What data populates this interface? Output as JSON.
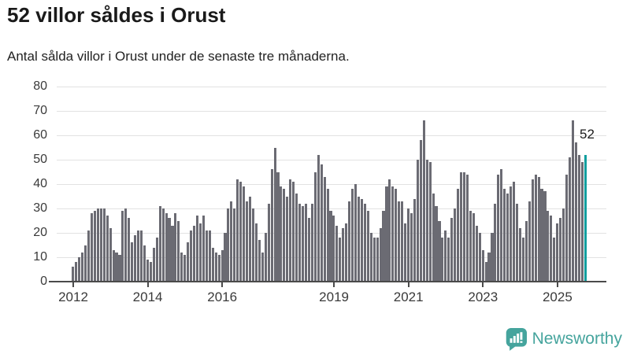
{
  "header": {
    "title": "52 villor såldes i Orust",
    "subtitle": "Antal sålda villor i Orust under de senaste tre månaderna."
  },
  "chart_data": {
    "type": "bar",
    "title": "52 villor såldes i Orust",
    "subtitle": "Antal sålda villor i Orust under de senaste tre månaderna.",
    "xlabel": "",
    "ylabel": "",
    "ylim": [
      0,
      80
    ],
    "y_ticks": [
      0,
      10,
      20,
      30,
      40,
      50,
      60,
      70,
      80
    ],
    "x_tick_labels": [
      "2012",
      "2014",
      "2016",
      "2019",
      "2021",
      "2023",
      "2025"
    ],
    "x_tick_years": [
      2012,
      2014,
      2016,
      2019,
      2021,
      2023,
      2025
    ],
    "grid": "horizontal",
    "legend": "none",
    "start_year": 2012,
    "months_per_value": 1,
    "series": [
      {
        "year": 2012,
        "values": [
          6,
          8,
          10,
          12,
          15,
          21,
          28,
          29,
          30,
          30,
          30,
          27
        ]
      },
      {
        "year": 2013,
        "values": [
          22,
          13,
          12,
          11,
          29,
          30,
          26,
          16,
          19,
          21,
          21,
          15
        ]
      },
      {
        "year": 2014,
        "values": [
          9,
          8,
          14,
          18,
          31,
          30,
          28,
          26,
          23,
          28,
          25,
          12
        ]
      },
      {
        "year": 2015,
        "values": [
          11,
          16,
          21,
          23,
          27,
          24,
          27,
          21,
          21,
          14,
          12,
          11
        ]
      },
      {
        "year": 2016,
        "values": [
          13,
          20,
          30,
          33,
          30,
          42,
          41,
          39,
          33,
          35,
          30,
          24
        ]
      },
      {
        "year": 2017,
        "values": [
          17,
          12,
          20,
          32,
          46,
          55,
          45,
          39,
          38,
          35,
          42,
          41
        ]
      },
      {
        "year": 2018,
        "values": [
          36,
          32,
          31,
          32,
          26,
          32,
          45,
          52,
          48,
          43,
          38,
          29
        ]
      },
      {
        "year": 2019,
        "values": [
          27,
          23,
          18,
          22,
          24,
          33,
          38,
          40,
          35,
          34,
          32,
          29
        ]
      },
      {
        "year": 2020,
        "values": [
          20,
          18,
          18,
          22,
          29,
          39,
          42,
          39,
          38,
          33,
          33,
          24
        ]
      },
      {
        "year": 2021,
        "values": [
          30,
          28,
          34,
          50,
          58,
          66,
          50,
          49,
          36,
          31,
          25,
          18
        ]
      },
      {
        "year": 2022,
        "values": [
          21,
          18,
          26,
          30,
          38,
          45,
          45,
          44,
          29,
          28,
          23,
          20
        ]
      },
      {
        "year": 2023,
        "values": [
          13,
          8,
          12,
          20,
          32,
          44,
          46,
          38,
          36,
          39,
          41,
          32
        ]
      },
      {
        "year": 2024,
        "values": [
          22,
          18,
          25,
          33,
          42,
          44,
          43,
          38,
          37,
          29,
          27,
          18
        ]
      },
      {
        "year": 2025,
        "values": [
          24,
          26,
          30,
          44,
          51,
          66,
          57,
          52,
          49,
          52
        ]
      }
    ],
    "highlight_last_bar": true,
    "annotation": {
      "text": "52",
      "value": 52
    },
    "colors": {
      "bar": "#6b6b73",
      "highlight": "#0f9e9e"
    }
  },
  "footer": {
    "brand": "Newsworthy",
    "brand_color": "#45a49d",
    "logo_icon": "bar-chart-speech-bubble-icon"
  }
}
